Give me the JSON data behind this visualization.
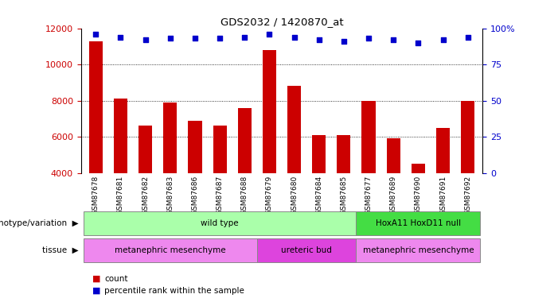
{
  "title": "GDS2032 / 1420870_at",
  "samples": [
    "GSM87678",
    "GSM87681",
    "GSM87682",
    "GSM87683",
    "GSM87686",
    "GSM87687",
    "GSM87688",
    "GSM87679",
    "GSM87680",
    "GSM87684",
    "GSM87685",
    "GSM87677",
    "GSM87689",
    "GSM87690",
    "GSM87691",
    "GSM87692"
  ],
  "counts": [
    11300,
    8100,
    6600,
    7900,
    6900,
    6600,
    7600,
    10800,
    8800,
    6100,
    6100,
    8000,
    5900,
    4500,
    6500,
    8000
  ],
  "percentile": [
    96,
    94,
    92,
    93,
    93,
    93,
    94,
    96,
    94,
    92,
    91,
    93,
    92,
    90,
    92,
    94
  ],
  "bar_color": "#cc0000",
  "dot_color": "#0000cc",
  "ylim_left": [
    4000,
    12000
  ],
  "ylim_right": [
    0,
    100
  ],
  "yticks_left": [
    4000,
    6000,
    8000,
    10000,
    12000
  ],
  "yticks_right": [
    0,
    25,
    50,
    75,
    100
  ],
  "genotype_groups": [
    {
      "label": "wild type",
      "start": 0,
      "end": 11,
      "color": "#aaffaa"
    },
    {
      "label": "HoxA11 HoxD11 null",
      "start": 11,
      "end": 16,
      "color": "#44dd44"
    }
  ],
  "tissue_groups": [
    {
      "label": "metanephric mesenchyme",
      "start": 0,
      "end": 7,
      "color": "#ee88ee"
    },
    {
      "label": "ureteric bud",
      "start": 7,
      "end": 11,
      "color": "#dd44dd"
    },
    {
      "label": "metanephric mesenchyme",
      "start": 11,
      "end": 16,
      "color": "#ee88ee"
    }
  ],
  "background_color": "#ffffff",
  "tick_bg": "#cccccc"
}
